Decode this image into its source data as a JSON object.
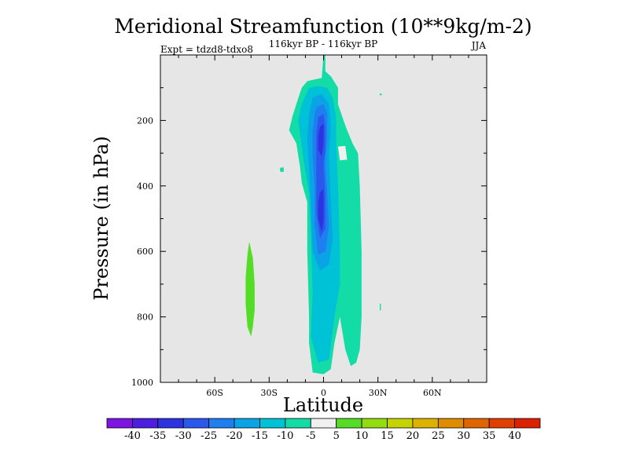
{
  "chart_data": {
    "type": "heatmap",
    "title": "Meridional Streamfunction (10**9kg/m-2)",
    "subtitle_left": "Expt = tdzd8-tdxo8",
    "subtitle_center": "116kyr BP - 116kyr BP",
    "subtitle_right": "JJA",
    "xlabel": "Latitude",
    "ylabel": "Pressure (in hPa)",
    "xlim": [
      -90,
      90
    ],
    "ylim": [
      0,
      1000
    ],
    "x_ticks": [
      {
        "value": -60,
        "label": "60S"
      },
      {
        "value": -30,
        "label": "30S"
      },
      {
        "value": 0,
        "label": "0"
      },
      {
        "value": 30,
        "label": "30N"
      },
      {
        "value": 60,
        "label": "60N"
      }
    ],
    "y_ticks": [
      {
        "value": 200,
        "label": "200"
      },
      {
        "value": 400,
        "label": "400"
      },
      {
        "value": 600,
        "label": "600"
      },
      {
        "value": 800,
        "label": "800"
      },
      {
        "value": 1000,
        "label": "1000"
      }
    ],
    "background_color": "#e6e6e6",
    "colorbar": {
      "labels": [
        "-40",
        "-35",
        "-30",
        "-25",
        "-20",
        "-15",
        "-10",
        "-5",
        "5",
        "10",
        "15",
        "20",
        "25",
        "30",
        "35",
        "40"
      ],
      "colors": [
        "#7d16e0",
        "#4b1ee0",
        "#2b34e0",
        "#2a58ec",
        "#1f7fef",
        "#0aa3e6",
        "#00c2d6",
        "#13dca6",
        "#f0f0f0",
        "#55dc26",
        "#93dc10",
        "#c5d400",
        "#ddb200",
        "#e08c00",
        "#e06400",
        "#e03f00",
        "#dc2100"
      ]
    },
    "contour_regions": [
      {
        "name": "sh-positive-cell",
        "level": 5,
        "color": "#55dc26",
        "outline": [
          [
            -41,
            570
          ],
          [
            -39,
            620
          ],
          [
            -38,
            700
          ],
          [
            -38,
            780
          ],
          [
            -39,
            830
          ],
          [
            -40,
            860
          ],
          [
            -42,
            830
          ],
          [
            -43,
            760
          ],
          [
            -43,
            680
          ],
          [
            -42,
            610
          ]
        ]
      },
      {
        "name": "left-tick",
        "level": -10,
        "color": "#13dca6",
        "outline": [
          [
            -24,
            345
          ],
          [
            -22,
            343
          ],
          [
            -22,
            358
          ],
          [
            -24,
            356
          ]
        ]
      },
      {
        "name": "equatorial-cell-outer",
        "level": -10,
        "color": "#13dca6",
        "outline": [
          [
            0,
            0
          ],
          [
            1,
            0
          ],
          [
            1,
            50
          ],
          [
            4,
            65
          ],
          [
            8,
            100
          ],
          [
            8,
            150
          ],
          [
            11,
            200
          ],
          [
            13,
            230
          ],
          [
            16,
            270
          ],
          [
            19,
            300
          ],
          [
            20,
            400
          ],
          [
            21,
            600
          ],
          [
            21,
            800
          ],
          [
            20,
            900
          ],
          [
            18,
            940
          ],
          [
            15,
            950
          ],
          [
            12,
            900
          ],
          [
            9,
            800
          ],
          [
            6,
            880
          ],
          [
            4,
            960
          ],
          [
            0,
            975
          ],
          [
            -6,
            970
          ],
          [
            -8,
            880
          ],
          [
            -8,
            800
          ],
          [
            -9,
            600
          ],
          [
            -9,
            450
          ],
          [
            -12,
            390
          ],
          [
            -13,
            340
          ],
          [
            -15,
            270
          ],
          [
            -19,
            230
          ],
          [
            -17,
            185
          ],
          [
            -15,
            150
          ],
          [
            -12,
            100
          ],
          [
            -9,
            80
          ],
          [
            -5,
            75
          ],
          [
            -1,
            70
          ]
        ]
      },
      {
        "name": "equatorial-cell-c15",
        "level": -15,
        "color": "#00c2d6",
        "outline": [
          [
            -8,
            100
          ],
          [
            -3,
            95
          ],
          [
            2,
            100
          ],
          [
            5,
            130
          ],
          [
            7,
            190
          ],
          [
            7,
            260
          ],
          [
            8,
            400
          ],
          [
            9,
            600
          ],
          [
            9,
            700
          ],
          [
            6,
            800
          ],
          [
            3,
            930
          ],
          [
            -3,
            940
          ],
          [
            -7,
            860
          ],
          [
            -6,
            720
          ],
          [
            -7,
            560
          ],
          [
            -8,
            420
          ],
          [
            -11,
            320
          ],
          [
            -13,
            240
          ],
          [
            -14,
            200
          ],
          [
            -12,
            150
          ]
        ]
      },
      {
        "name": "equatorial-cell-c20",
        "level": -20,
        "color": "#0aa3e6",
        "outline": [
          [
            -6,
            130
          ],
          [
            -1,
            120
          ],
          [
            3,
            150
          ],
          [
            4,
            220
          ],
          [
            3,
            300
          ],
          [
            4,
            440
          ],
          [
            5,
            560
          ],
          [
            3,
            640
          ],
          [
            -2,
            660
          ],
          [
            -6,
            600
          ],
          [
            -7,
            460
          ],
          [
            -8,
            340
          ],
          [
            -9,
            260
          ],
          [
            -8,
            180
          ]
        ]
      },
      {
        "name": "equatorial-cell-c25",
        "level": -25,
        "color": "#1f7fef",
        "outline": [
          [
            -4,
            160
          ],
          [
            0,
            150
          ],
          [
            2,
            180
          ],
          [
            2,
            260
          ],
          [
            1,
            320
          ],
          [
            2,
            420
          ],
          [
            3,
            520
          ],
          [
            1,
            600
          ],
          [
            -3,
            610
          ],
          [
            -5,
            520
          ],
          [
            -5,
            400
          ],
          [
            -6,
            310
          ],
          [
            -6,
            230
          ],
          [
            -5,
            180
          ]
        ]
      },
      {
        "name": "equatorial-cell-c30",
        "level": -30,
        "color": "#2a58ec",
        "outline": [
          [
            -3,
            190
          ],
          [
            0,
            180
          ],
          [
            1,
            220
          ],
          [
            1,
            290
          ],
          [
            0,
            330
          ],
          [
            1,
            430
          ],
          [
            1,
            530
          ],
          [
            -2,
            560
          ],
          [
            -4,
            480
          ],
          [
            -4,
            380
          ],
          [
            -4,
            300
          ],
          [
            -4,
            240
          ]
        ]
      },
      {
        "name": "equatorial-cell-c35-upper",
        "level": -35,
        "color": "#2b34e0",
        "outline": [
          [
            -2,
            220
          ],
          [
            0,
            210
          ],
          [
            0,
            270
          ],
          [
            -1,
            310
          ],
          [
            -3,
            290
          ],
          [
            -3,
            250
          ]
        ]
      },
      {
        "name": "equatorial-cell-c35-lower",
        "level": -35,
        "color": "#2b34e0",
        "outline": [
          [
            -2,
            420
          ],
          [
            0,
            410
          ],
          [
            0,
            510
          ],
          [
            -1,
            540
          ],
          [
            -3,
            500
          ],
          [
            -3,
            450
          ]
        ]
      },
      {
        "name": "upper-right-blob",
        "level": 5,
        "color": "#f0f0f0",
        "outline": [
          [
            8,
            280
          ],
          [
            12,
            278
          ],
          [
            13,
            320
          ],
          [
            9,
            322
          ]
        ]
      },
      {
        "name": "nh-tick-upper",
        "level": -10,
        "color": "#13dca6",
        "outline": [
          [
            31,
            118
          ],
          [
            32,
            118
          ],
          [
            32,
            123
          ],
          [
            31,
            123
          ]
        ]
      },
      {
        "name": "nh-tick-lower",
        "level": -10,
        "color": "#13dca6",
        "outline": [
          [
            31,
            760
          ],
          [
            31.6,
            760
          ],
          [
            31.6,
            780
          ],
          [
            31,
            780
          ]
        ]
      }
    ]
  }
}
